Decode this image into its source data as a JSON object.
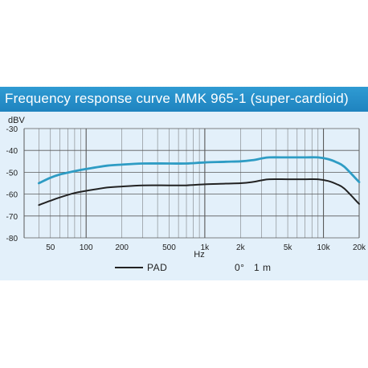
{
  "title": "Frequency response curve MMK 965-1 (super-cardioid)",
  "colors": {
    "banner": "#2384c2",
    "panel": "#e3f0fa",
    "main_curve": "#2e9cc4",
    "pad_curve": "#222222",
    "grid": "#5a5a5a"
  },
  "chart_data": {
    "type": "line",
    "title": "Frequency response curve MMK 965-1 (super-cardioid)",
    "xlabel": "Hz",
    "ylabel": "dBV",
    "xscale": "log",
    "xlim": [
      30,
      20000
    ],
    "ylim": [
      -80,
      -30
    ],
    "grid": true,
    "x_ticks": [
      {
        "value": 50,
        "label": "50"
      },
      {
        "value": 100,
        "label": "100"
      },
      {
        "value": 200,
        "label": "200"
      },
      {
        "value": 500,
        "label": "500"
      },
      {
        "value": 1000,
        "label": "1k"
      },
      {
        "value": 2000,
        "label": "2k"
      },
      {
        "value": 5000,
        "label": "5k"
      },
      {
        "value": 10000,
        "label": "10k"
      },
      {
        "value": 20000,
        "label": "20k"
      }
    ],
    "y_ticks": [
      {
        "value": -30,
        "label": "-30"
      },
      {
        "value": -40,
        "label": "-40"
      },
      {
        "value": -50,
        "label": "-50"
      },
      {
        "value": -60,
        "label": "-60"
      },
      {
        "value": -70,
        "label": "-70"
      },
      {
        "value": -80,
        "label": "-80"
      }
    ],
    "series": [
      {
        "color": "#2e9cc4",
        "x": [
          40,
          50,
          60,
          80,
          100,
          150,
          200,
          300,
          500,
          700,
          1000,
          1500,
          2000,
          2500,
          3000,
          3500,
          5000,
          7000,
          9000,
          11000,
          13000,
          15000,
          20000
        ],
        "y": [
          -55,
          -52.5,
          -51,
          -49.5,
          -48.5,
          -47,
          -46.5,
          -46,
          -46,
          -46,
          -45.5,
          -45.2,
          -45,
          -44.5,
          -43.7,
          -43.2,
          -43.2,
          -43.2,
          -43.2,
          -44,
          -45.5,
          -47.5,
          -54.5
        ]
      },
      {
        "name": "PAD",
        "color": "#222222",
        "x": [
          40,
          50,
          60,
          80,
          100,
          150,
          200,
          300,
          500,
          700,
          1000,
          1500,
          2000,
          2500,
          3000,
          3500,
          5000,
          7000,
          9000,
          11000,
          13000,
          15000,
          20000
        ],
        "y": [
          -65,
          -63,
          -61.5,
          -59.5,
          -58.5,
          -57,
          -56.5,
          -56,
          -56,
          -56,
          -55.5,
          -55.2,
          -55,
          -54.5,
          -53.7,
          -53.2,
          -53.2,
          -53.2,
          -53.2,
          -54,
          -55.5,
          -57.5,
          -64.5
        ]
      }
    ],
    "legend": {
      "line_label": "PAD",
      "condition": "0°   1 m"
    }
  }
}
